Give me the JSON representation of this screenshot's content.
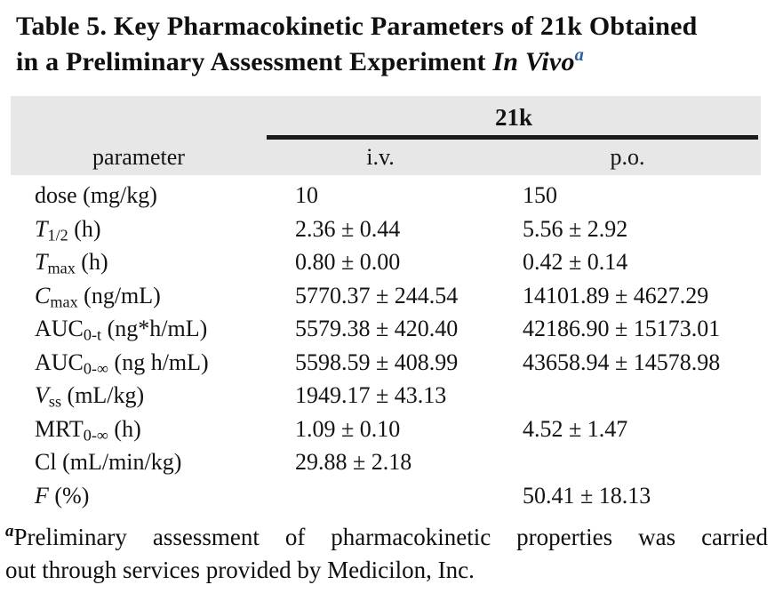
{
  "title": {
    "line1": "Table 5. Key Pharmacokinetic Parameters of 21k Obtained",
    "line2_prefix": "in a Preliminary Assessment Experiment ",
    "line2_italic": "In Vivo",
    "footnote_marker": "a"
  },
  "table": {
    "group_header": "21k",
    "columns": {
      "parameter": "parameter",
      "iv": "i.v.",
      "po": "p.o."
    },
    "rows": [
      {
        "base": "dose",
        "sub": "",
        "unit": " (mg/kg)",
        "iv": "10",
        "po": "150"
      },
      {
        "base": "T",
        "sub": "1/2",
        "unit": " (h)",
        "iv": "2.36 ± 0.44",
        "po": "5.56 ± 2.92"
      },
      {
        "base": "T",
        "sub": "max",
        "unit": " (h)",
        "iv": "0.80 ± 0.00",
        "po": "0.42 ± 0.14"
      },
      {
        "base": "C",
        "sub": "max",
        "unit": " (ng/mL)",
        "iv": "5770.37 ± 244.54",
        "po": "14101.89 ± 4627.29"
      },
      {
        "base": "AUC",
        "sub": "0-t",
        "unit": " (ng*h/mL)",
        "iv": "5579.38 ± 420.40",
        "po": "42186.90 ± 15173.01"
      },
      {
        "base": "AUC",
        "sub": "0-∞",
        "unit": " (ng h/mL)",
        "iv": "5598.59 ± 408.99",
        "po": "43658.94 ± 14578.98"
      },
      {
        "base": "V",
        "sub": "ss",
        "unit": " (mL/kg)",
        "iv": "1949.17 ± 43.13",
        "po": ""
      },
      {
        "base": "MRT",
        "sub": "0-∞",
        "unit": " (h)",
        "iv": "1.09 ± 0.10",
        "po": "4.52 ± 1.47"
      },
      {
        "base": "Cl",
        "sub": "",
        "unit": " (mL/min/kg)",
        "iv": "29.88 ± 2.18",
        "po": ""
      },
      {
        "base": "F",
        "sub": "",
        "unit": " (%)",
        "iv": "",
        "po": "50.41 ± 18.13"
      }
    ]
  },
  "footnote": {
    "marker": "a",
    "line1": "Preliminary assessment of pharmacokinetic properties was carried",
    "line2": "out through services provided by Medicilon, Inc."
  },
  "colors": {
    "header_bg": "#e7e7e7",
    "rule": "#1b1b1b",
    "title_marker_blue": "#2d5fa8"
  }
}
